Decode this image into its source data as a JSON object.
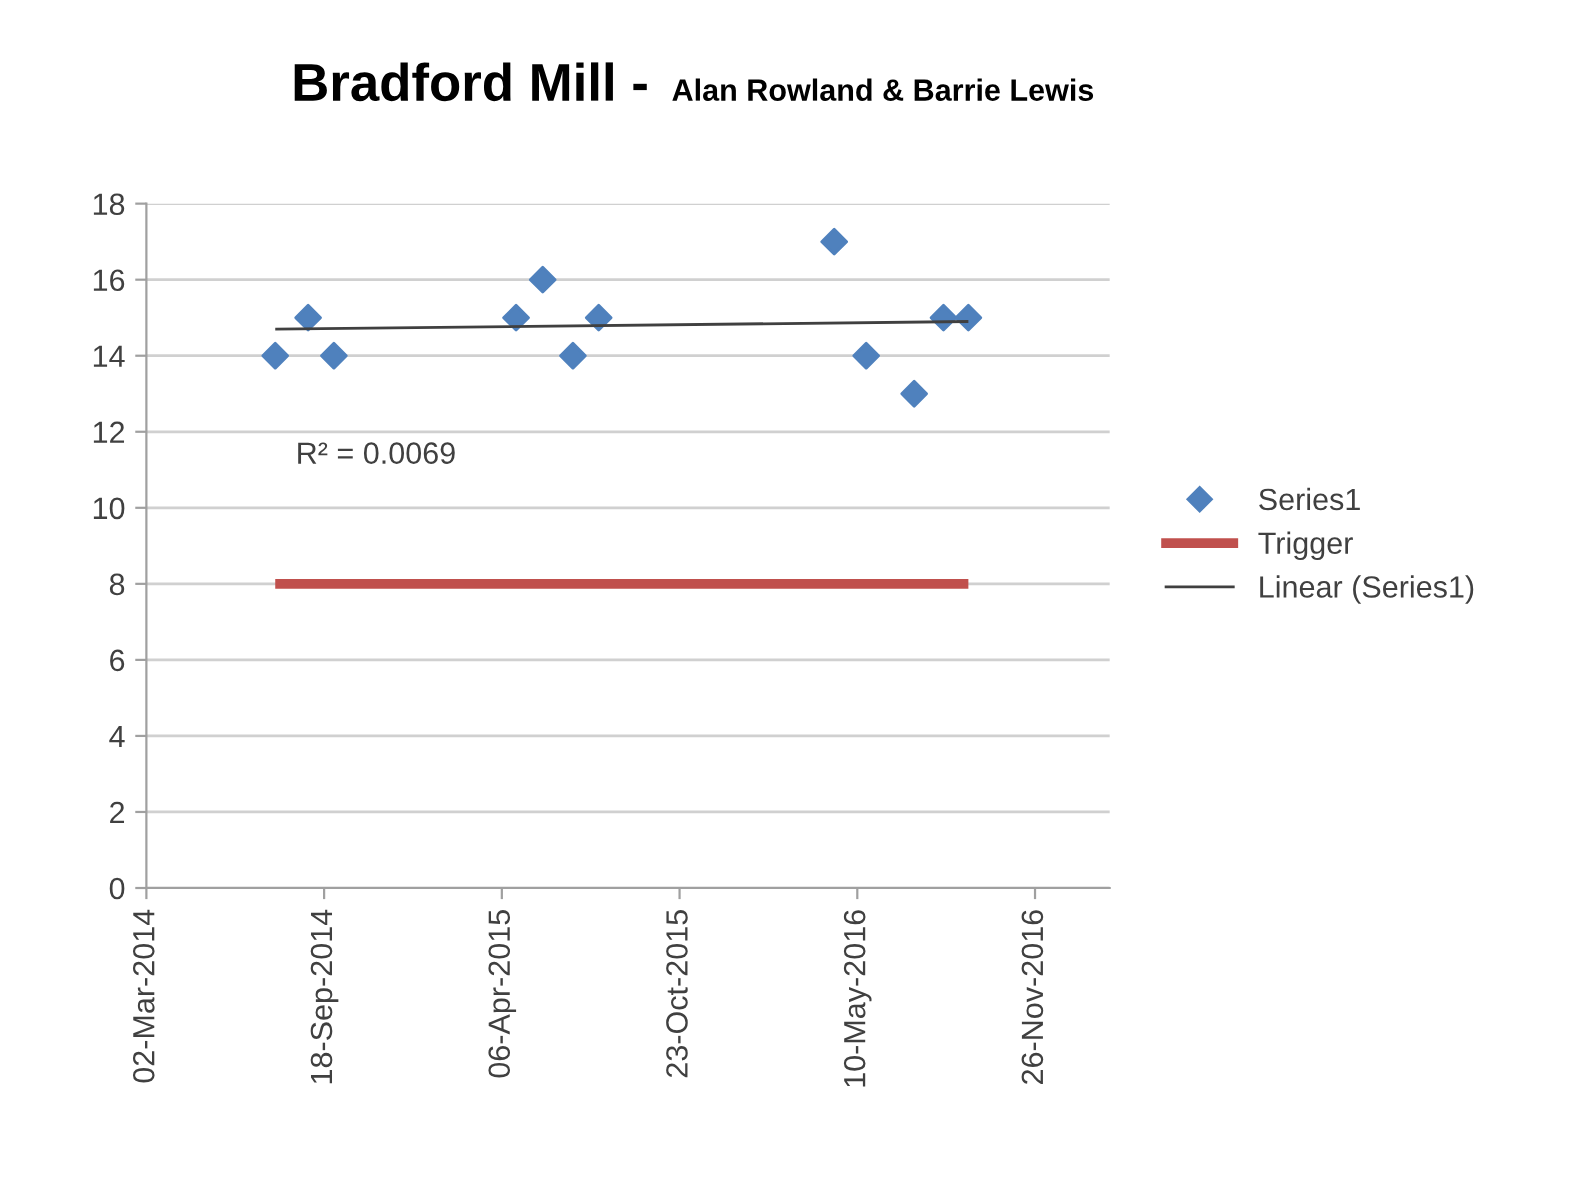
{
  "chart_data": {
    "type": "scatter",
    "title": "Bradford Mill - ",
    "subtitle": "Alan Rowland & Barrie Lewis",
    "series": [
      {
        "name": "Series1",
        "color": "#4f81bd",
        "marker": "diamond",
        "x": [
          "2014-07-25",
          "2014-08-31",
          "2014-09-29",
          "2015-04-22",
          "2015-05-22",
          "2015-06-25",
          "2015-07-24",
          "2016-04-14",
          "2016-05-20",
          "2016-07-13",
          "2016-08-15",
          "2016-09-12"
        ],
        "values": [
          14,
          15,
          14,
          15,
          16,
          14,
          15,
          17,
          14,
          13,
          15,
          15
        ]
      },
      {
        "name": "Trigger",
        "type": "line",
        "color": "#c0504d",
        "x": [
          "2014-07-25",
          "2016-09-12"
        ],
        "values": [
          8,
          8
        ]
      },
      {
        "name": "Linear (Series1)",
        "type": "line",
        "color": "#404040",
        "x": [
          "2014-07-25",
          "2016-09-12"
        ],
        "values": [
          14.7,
          14.9
        ]
      }
    ],
    "annotations": [
      "R² = 0.0069"
    ],
    "xlim": [
      "2014-03-02",
      "2017-02-18"
    ],
    "xticks": [
      {
        "value": "2014-03-02",
        "label": "02-Mar-2014"
      },
      {
        "value": "2014-09-18",
        "label": "18-Sep-2014"
      },
      {
        "value": "2015-04-06",
        "label": "06-Apr-2015"
      },
      {
        "value": "2015-10-23",
        "label": "23-Oct-2015"
      },
      {
        "value": "2016-05-10",
        "label": "10-May-2016"
      },
      {
        "value": "2016-11-26",
        "label": "26-Nov-2016"
      }
    ],
    "ylim": [
      0,
      18
    ],
    "yticks": [
      0,
      2,
      4,
      6,
      8,
      10,
      12,
      14,
      16,
      18
    ],
    "grid": "y",
    "legend": "right"
  }
}
